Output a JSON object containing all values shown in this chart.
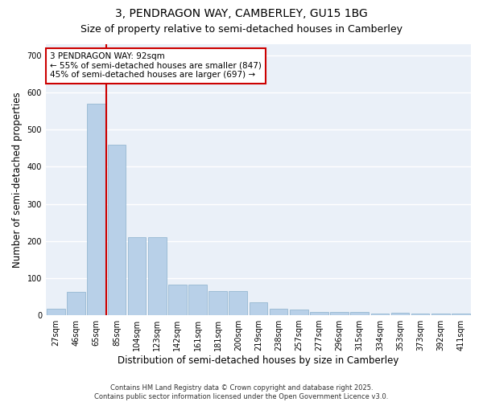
{
  "title_line1": "3, PENDRAGON WAY, CAMBERLEY, GU15 1BG",
  "title_line2": "Size of property relative to semi-detached houses in Camberley",
  "xlabel": "Distribution of semi-detached houses by size in Camberley",
  "ylabel": "Number of semi-detached properties",
  "categories": [
    "27sqm",
    "46sqm",
    "65sqm",
    "85sqm",
    "104sqm",
    "123sqm",
    "142sqm",
    "161sqm",
    "181sqm",
    "200sqm",
    "219sqm",
    "238sqm",
    "257sqm",
    "277sqm",
    "296sqm",
    "315sqm",
    "334sqm",
    "353sqm",
    "373sqm",
    "392sqm",
    "411sqm"
  ],
  "values": [
    18,
    62,
    570,
    460,
    210,
    210,
    82,
    82,
    65,
    65,
    35,
    18,
    15,
    8,
    8,
    8,
    5,
    7,
    5,
    5,
    4
  ],
  "bar_color": "#b8d0e8",
  "bar_edge_color": "#8ab0cc",
  "red_line_x": 2.5,
  "annotation_text_line1": "3 PENDRAGON WAY: 92sqm",
  "annotation_text_line2": "← 55% of semi-detached houses are smaller (847)",
  "annotation_text_line3": "45% of semi-detached houses are larger (697) →",
  "annotation_box_color": "#ffffff",
  "annotation_box_edge": "#cc0000",
  "red_line_color": "#cc0000",
  "ylim": [
    0,
    730
  ],
  "yticks": [
    0,
    100,
    200,
    300,
    400,
    500,
    600,
    700
  ],
  "background_color": "#eaf0f8",
  "grid_color": "#ffffff",
  "footnote": "Contains HM Land Registry data © Crown copyright and database right 2025.\nContains public sector information licensed under the Open Government Licence v3.0.",
  "title_fontsize": 10,
  "subtitle_fontsize": 9,
  "axis_label_fontsize": 8.5,
  "tick_fontsize": 7,
  "annotation_fontsize": 7.5,
  "footnote_fontsize": 6
}
